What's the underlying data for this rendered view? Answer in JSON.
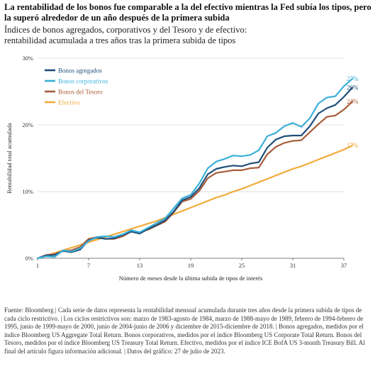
{
  "title": "La rentabilidad de los bonos fue comparable a la del efectivo mientras la Fed subía los tipos, pero la superó alrededor de un año después de la primera subida",
  "subtitle_line1": "Índices de bonos agregados, corporativos y del Tesoro y de efectivo:",
  "subtitle_line2": "rentabilidad acumulada a tres años tras la primera subida de tipos",
  "footer": "Fuente: Bloomberg | Cada serie de datos representa la rentabilidad mensual acumulada durante tres años desde la primera subida de tipos de cada ciclo restrictivo. | Los ciclos restrictivos son: marzo de 1983-agosto de 1984, marzo de 1988-mayo de 1989, febrero de 1994-febrero de 1995, junio de 1999-mayo de 2000, junio de 2004-junio de 2006 y diciembre de 2015-diciembre de 2018. | Bonos agregados, medidos por el índice Bloomberg US Aggregate Total Return. Bonos corporativos, medidos por el índice Bloomberg US Corporate Total Return. Bonos del Tesoro, medidos por el índice Bloomberg US Treasury Total Return. Efectivo, medidos por el índice ICE BofA US 3-month Treasury Bill. Al final del artículo figura información adicional. | Datos del gráfico: 27 de julio de 2023.",
  "chart_data": {
    "type": "line",
    "xlabel": "Número de meses desde la última subida de tipos de interés",
    "ylabel": "Rentabilidad total acumulada",
    "x_ticks": [
      "1",
      "7",
      "13",
      "19",
      "25",
      "31",
      "37"
    ],
    "y_ticks": [
      "0%",
      "10%",
      "20%",
      "30%"
    ],
    "xlim": [
      1,
      37
    ],
    "ylim": [
      0,
      30
    ],
    "legend_position": "top-left",
    "series": [
      {
        "name": "Bonos agregados",
        "color": "#1f4e79",
        "end_label": "26%",
        "values": [
          0,
          0.4,
          0.5,
          1.1,
          0.9,
          1.3,
          2.7,
          3.1,
          2.9,
          3.0,
          3.5,
          4.0,
          3.7,
          4.4,
          5.0,
          5.7,
          7.0,
          8.7,
          9.2,
          10.5,
          12.6,
          13.4,
          13.7,
          13.9,
          13.8,
          14.2,
          14.4,
          16.6,
          17.8,
          18.3,
          18.4,
          18.4,
          19.8,
          21.7,
          22.5,
          23.0,
          24.2,
          25.6
        ]
      },
      {
        "name": "Bonos corporativos",
        "color": "#3bb0d8",
        "end_label": "27%",
        "values": [
          0,
          0.3,
          0.2,
          1.2,
          1.0,
          1.5,
          2.6,
          3.2,
          3.3,
          3.2,
          3.6,
          4.2,
          3.9,
          4.6,
          5.3,
          6.0,
          7.5,
          9.0,
          9.5,
          11.2,
          13.5,
          14.5,
          14.9,
          15.4,
          15.3,
          15.5,
          16.2,
          18.3,
          18.8,
          19.8,
          20.3,
          19.7,
          21.0,
          23.2,
          24.1,
          24.3,
          25.8,
          26.9
        ]
      },
      {
        "name": "Bonos del Tesoro",
        "color": "#a75c3b",
        "end_label": "24%",
        "values": [
          0,
          0.5,
          0.6,
          1.1,
          1.2,
          1.7,
          2.9,
          3.2,
          2.9,
          2.9,
          3.3,
          4.0,
          3.9,
          4.3,
          4.9,
          5.5,
          6.9,
          8.5,
          8.9,
          10.1,
          12.0,
          12.8,
          13.0,
          13.2,
          13.2,
          13.5,
          13.6,
          15.6,
          16.7,
          17.3,
          17.6,
          17.7,
          18.9,
          20.1,
          21.2,
          21.4,
          22.3,
          23.5
        ]
      },
      {
        "name": "Efectivo",
        "color": "#f0ab3c",
        "end_label": "17%",
        "values": [
          0,
          0.4,
          0.8,
          1.2,
          1.6,
          2.0,
          2.4,
          2.8,
          3.2,
          3.6,
          4.0,
          4.4,
          4.8,
          5.2,
          5.6,
          6.1,
          6.6,
          7.1,
          7.6,
          8.1,
          8.6,
          9.1,
          9.5,
          10.0,
          10.4,
          10.9,
          11.4,
          11.9,
          12.4,
          12.9,
          13.4,
          13.8,
          14.3,
          14.8,
          15.3,
          15.8,
          16.3,
          16.9
        ]
      }
    ]
  }
}
